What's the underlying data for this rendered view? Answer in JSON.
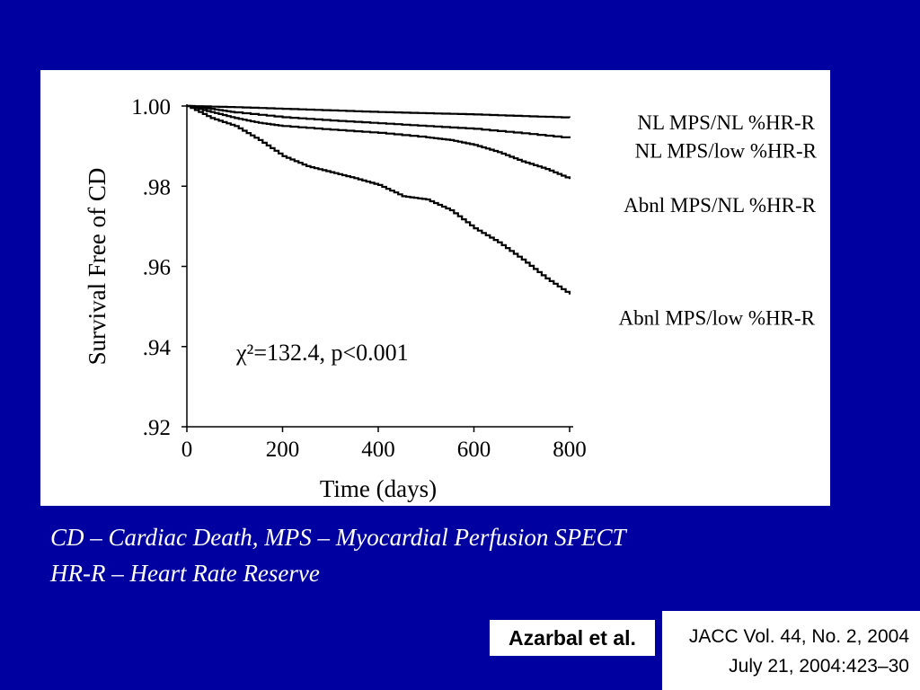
{
  "chart_data": {
    "type": "line",
    "xlabel": "Time (days)",
    "ylabel": "Survival Free of CD",
    "xlim": [
      0,
      800
    ],
    "ylim": [
      0.92,
      1.0
    ],
    "x_ticks": [
      "0",
      "200",
      "400",
      "600",
      "800"
    ],
    "y_ticks": [
      ".92",
      ".94",
      ".96",
      ".98",
      "1.00"
    ],
    "annotation": "χ²=132.4, p<0.001",
    "series": [
      {
        "name": "NL MPS/NL %HR-R",
        "color": "#000000",
        "x": [
          0,
          100,
          200,
          300,
          400,
          500,
          600,
          700,
          800
        ],
        "y": [
          1.0,
          0.9997,
          0.9993,
          0.9989,
          0.9985,
          0.9982,
          0.9979,
          0.9975,
          0.9971
        ]
      },
      {
        "name": "NL MPS/low %HR-R",
        "color": "#000000",
        "x": [
          0,
          50,
          100,
          200,
          300,
          400,
          500,
          600,
          700,
          800
        ],
        "y": [
          1.0,
          0.9993,
          0.9984,
          0.9972,
          0.9964,
          0.9957,
          0.995,
          0.9943,
          0.9932,
          0.992
        ]
      },
      {
        "name": "Abnl MPS/NL %HR-R",
        "color": "#000000",
        "x": [
          0,
          50,
          100,
          150,
          200,
          300,
          400,
          500,
          550,
          600,
          650,
          700,
          750,
          800
        ],
        "y": [
          1.0,
          0.9985,
          0.997,
          0.9958,
          0.995,
          0.9941,
          0.9933,
          0.9922,
          0.9915,
          0.9903,
          0.9885,
          0.9862,
          0.9843,
          0.9818
        ]
      },
      {
        "name": "Abnl MPS/low %HR-R",
        "color": "#000000",
        "x": [
          0,
          50,
          100,
          150,
          200,
          250,
          300,
          350,
          400,
          450,
          500,
          550,
          600,
          650,
          700,
          750,
          800
        ],
        "y": [
          1.0,
          0.997,
          0.995,
          0.9915,
          0.9875,
          0.985,
          0.9835,
          0.982,
          0.9803,
          0.9775,
          0.9767,
          0.974,
          0.9695,
          0.966,
          0.9617,
          0.957,
          0.953
        ]
      }
    ]
  },
  "caption": {
    "line1": "CD – Cardiac Death, MPS – Myocardial Perfusion SPECT",
    "line2": "HR-R – Heart Rate Reserve"
  },
  "citation": {
    "authors": "Azarbal et al.",
    "journal": "JACC Vol. 44, No. 2, 2004",
    "date_pages": "July 21, 2004:423–30"
  }
}
